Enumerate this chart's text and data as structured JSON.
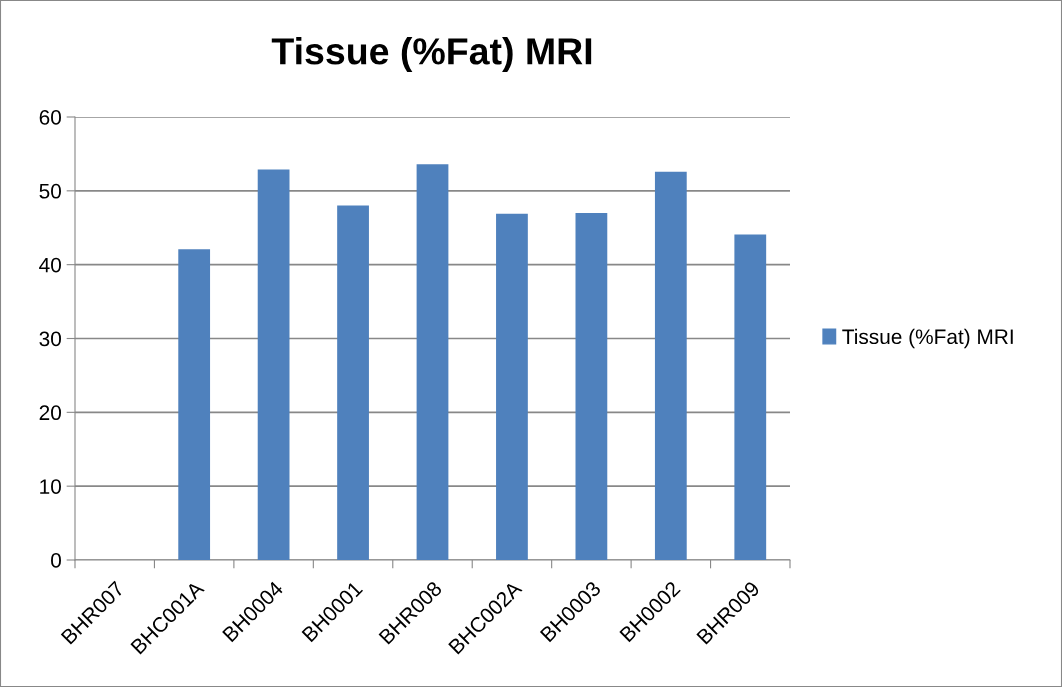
{
  "chart_data": {
    "type": "bar",
    "title": "Tissue (%Fat) MRI",
    "categories": [
      "BHR007",
      "BHC001A",
      "BH0004",
      "BH0001",
      "BHR008",
      "BHC002A",
      "BH0003",
      "BH0002",
      "BHR009"
    ],
    "series": [
      {
        "name": "Tissue (%Fat) MRI",
        "color": "#4f81bd",
        "values": [
          null,
          42.1,
          52.9,
          48.0,
          53.6,
          46.9,
          47.0,
          52.6,
          44.1
        ]
      }
    ],
    "ylim": [
      0,
      60
    ],
    "yticks": [
      0,
      10,
      20,
      30,
      40,
      50,
      60
    ],
    "grid": "y",
    "legend": "right"
  }
}
